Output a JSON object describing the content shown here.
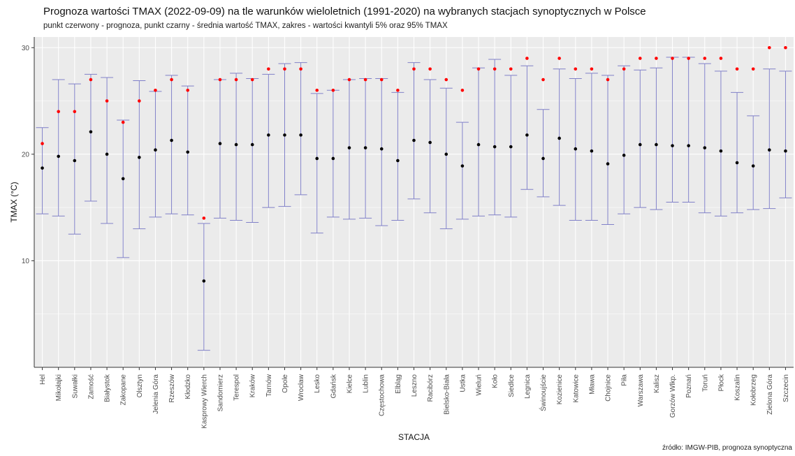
{
  "chart_data": {
    "type": "scatter",
    "title": "Prognoza wartości TMAX (2022-09-09) na tle warunków wieloletnich (1991-2020) na wybranych stacjach synoptycznych w Polsce",
    "subtitle": "punkt czerwony - prognoza, punkt czarny - średnia wartość TMAX, zakres - wartości kwantyli 5% oraz 95% TMAX",
    "xlabel": "STACJA",
    "ylabel": "TMAX (°C)",
    "source": "źródło: IMGW-PIB, prognoza synoptyczna",
    "ylim": [
      0,
      31
    ],
    "yticks": [
      10,
      20,
      30
    ],
    "grid": true,
    "colors": {
      "forecast": "#ff0000",
      "mean": "#000000",
      "range": "#8080c8",
      "panel": "#ebebeb",
      "grid": "#ffffff"
    },
    "stations": [
      "Hel",
      "Mikołajki",
      "Suwałki",
      "Zamość",
      "Białystok",
      "Zakopane",
      "Olsztyn",
      "Jelenia Góra",
      "Rzeszów",
      "Kłodzko",
      "Kasprowy Wierch",
      "Sandomierz",
      "Terespol",
      "Kraków",
      "Tarnów",
      "Opole",
      "Wrocław",
      "Lesko",
      "Gdańsk",
      "Kielce",
      "Lublin",
      "Częstochowa",
      "Elbląg",
      "Leszno",
      "Racibórz",
      "Bielsko-Biała",
      "Ustka",
      "Wieluń",
      "Koło",
      "Siedlce",
      "Legnica",
      "Świnoujście",
      "Kozienice",
      "Katowice",
      "Mława",
      "Chojnice",
      "Piła",
      "Warszawa",
      "Kalisz",
      "Gorzów Wlkp.",
      "Poznań",
      "Toruń",
      "Płock",
      "Koszalin",
      "Kołobrzeg",
      "Zielona Góra",
      "Szczecin"
    ],
    "series": [
      {
        "name": "prognoza",
        "values": [
          21,
          24,
          24,
          27,
          25,
          23,
          25,
          26,
          27,
          26,
          14,
          27,
          27,
          27,
          28,
          28,
          28,
          26,
          26,
          27,
          27,
          27,
          26,
          28,
          28,
          27,
          26,
          28,
          28,
          28,
          29,
          27,
          29,
          28,
          28,
          27,
          28,
          29,
          29,
          29,
          29,
          29,
          29,
          28,
          28,
          30,
          30
        ]
      },
      {
        "name": "średnia",
        "values": [
          18.7,
          19.8,
          19.4,
          22.1,
          20.0,
          17.7,
          19.7,
          20.4,
          21.3,
          20.2,
          8.1,
          21.0,
          20.9,
          20.9,
          21.8,
          21.8,
          21.8,
          19.6,
          19.6,
          20.6,
          20.6,
          20.5,
          19.4,
          21.3,
          21.1,
          20.0,
          18.9,
          20.9,
          20.7,
          20.7,
          21.8,
          19.6,
          21.5,
          20.5,
          20.3,
          19.1,
          19.9,
          20.9,
          20.9,
          20.8,
          20.8,
          20.6,
          20.3,
          19.2,
          18.9,
          20.4,
          20.3
        ]
      },
      {
        "name": "kwantyl 5%",
        "values": [
          14.4,
          14.2,
          12.5,
          15.6,
          13.5,
          10.3,
          13.0,
          14.1,
          14.4,
          14.3,
          1.6,
          14.0,
          13.8,
          13.6,
          15.0,
          15.1,
          16.2,
          12.6,
          14.1,
          13.9,
          14.0,
          13.3,
          13.8,
          15.8,
          14.5,
          13.0,
          13.9,
          14.2,
          14.3,
          14.1,
          16.7,
          16.0,
          15.2,
          13.8,
          13.8,
          13.4,
          14.4,
          15.0,
          14.8,
          15.5,
          15.5,
          14.5,
          14.2,
          14.5,
          14.8,
          14.9,
          15.9
        ]
      },
      {
        "name": "kwantyl 95%",
        "values": [
          22.5,
          27.0,
          26.6,
          27.5,
          27.2,
          23.2,
          26.9,
          25.9,
          27.4,
          26.4,
          13.5,
          27.0,
          27.6,
          27.1,
          27.5,
          28.5,
          28.6,
          25.7,
          26.0,
          27.0,
          27.1,
          27.1,
          25.8,
          28.6,
          27.0,
          26.2,
          23.0,
          28.1,
          28.9,
          27.4,
          28.3,
          24.2,
          28.0,
          27.1,
          27.6,
          27.4,
          28.3,
          27.9,
          28.1,
          29.1,
          29.1,
          28.5,
          27.8,
          25.8,
          23.6,
          28.0,
          27.8
        ]
      }
    ]
  }
}
